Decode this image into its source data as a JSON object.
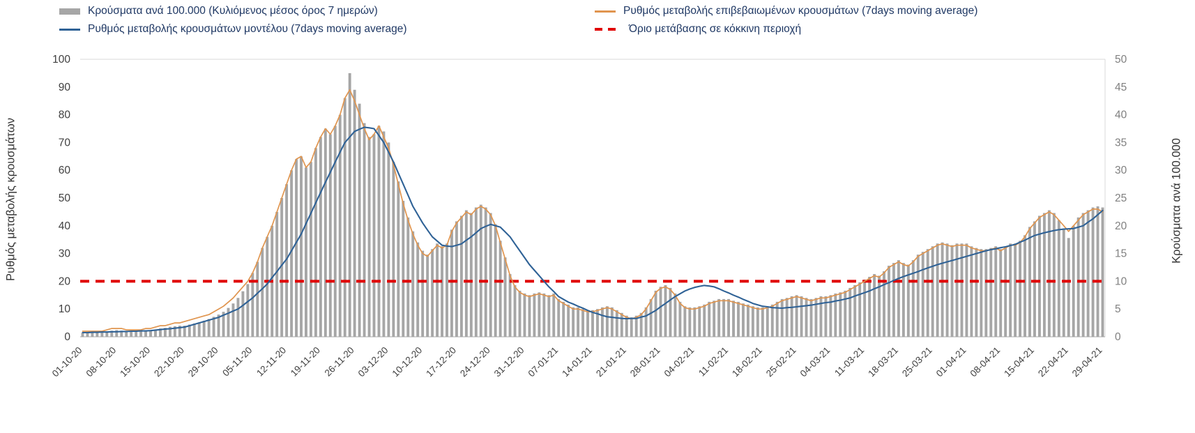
{
  "page": {
    "background": "#ffffff"
  },
  "chart_data": {
    "type": "combo",
    "grid": false,
    "legend_position": "top",
    "left_axis": {
      "title": "Ρυθμός μεταβολής κρουσμάτων",
      "min": 0,
      "max": 100,
      "step": 10,
      "ticks": [
        0,
        10,
        20,
        30,
        40,
        50,
        60,
        70,
        80,
        90,
        100
      ]
    },
    "right_axis": {
      "title": "Κρούσματα ανά 100.000",
      "min": 0,
      "max": 50,
      "step": 5,
      "ticks": [
        0,
        5,
        10,
        15,
        20,
        25,
        30,
        35,
        40,
        45,
        50
      ]
    },
    "x_axis": {
      "points_per_tick": 7,
      "tick_labels": [
        "01-10-20",
        "08-10-20",
        "15-10-20",
        "22-10-20",
        "29-10-20",
        "05-11-20",
        "12-11-20",
        "19-11-20",
        "26-11-20",
        "03-12-20",
        "10-12-20",
        "17-12-20",
        "24-12-20",
        "31-12-20",
        "07-01-21",
        "14-01-21",
        "21-01-21",
        "28-01-21",
        "04-02-21",
        "11-02-21",
        "18-02-21",
        "25-02-21",
        "04-03-21",
        "11-03-21",
        "18-03-21",
        "25-03-21",
        "01-04-21",
        "08-04-21",
        "15-04-21",
        "22-04-21",
        "29-04-21"
      ]
    },
    "threshold": {
      "label": "Όριο μετάβασης σε κόκκινη περιοχή",
      "axis": "left",
      "value": 20,
      "color": "#e00000",
      "style": "dashed"
    },
    "series": [
      {
        "name": "Κρούσματα ανά 100.000 (Κυλιόμενος μέσος όρος 7 ημερών)",
        "type": "bar",
        "axis": "right",
        "color": "#a6a6a6",
        "values": [
          0.7,
          0.7,
          0.8,
          0.8,
          0.9,
          1.0,
          1.1,
          1.2,
          1.1,
          1.0,
          1.0,
          1.0,
          1.1,
          1.2,
          1.2,
          1.3,
          1.5,
          1.6,
          1.8,
          1.9,
          2.0,
          2.0,
          2.2,
          2.4,
          2.6,
          2.9,
          3.2,
          3.6,
          4.0,
          4.5,
          5.2,
          6.0,
          7.0,
          8.2,
          9.5,
          11.5,
          13.5,
          16.0,
          18.0,
          20.0,
          22.5,
          25.0,
          27.5,
          30.0,
          32.0,
          32.5,
          30.5,
          31.5,
          34.0,
          36.0,
          37.5,
          36.5,
          38.0,
          40.0,
          43.0,
          47.5,
          44.5,
          42.0,
          38.5,
          36.0,
          36.5,
          38.0,
          37.0,
          35.0,
          31.5,
          28.0,
          24.5,
          21.5,
          19.0,
          17.0,
          15.5,
          14.8,
          15.8,
          16.8,
          16.3,
          16.8,
          19.3,
          20.8,
          21.8,
          22.8,
          22.3,
          23.3,
          23.8,
          23.3,
          22.3,
          20.3,
          17.3,
          14.3,
          11.3,
          9.3,
          8.3,
          7.8,
          7.5,
          7.8,
          8.0,
          7.8,
          7.5,
          7.8,
          6.8,
          6.3,
          5.8,
          5.3,
          5.3,
          5.0,
          4.8,
          4.8,
          5.0,
          5.3,
          5.5,
          5.3,
          4.8,
          4.3,
          3.8,
          3.5,
          3.8,
          4.3,
          5.3,
          6.8,
          8.3,
          9.0,
          9.3,
          8.8,
          7.8,
          6.3,
          5.5,
          5.3,
          5.3,
          5.5,
          5.8,
          6.3,
          6.5,
          6.8,
          6.8,
          6.8,
          6.5,
          6.3,
          6.0,
          5.8,
          5.5,
          5.3,
          5.3,
          5.5,
          5.8,
          6.3,
          6.8,
          7.0,
          7.3,
          7.5,
          7.3,
          7.0,
          6.8,
          7.0,
          7.3,
          7.3,
          7.5,
          7.8,
          8.0,
          8.3,
          8.8,
          9.3,
          9.8,
          10.3,
          10.8,
          11.3,
          11.0,
          11.8,
          12.8,
          13.3,
          13.8,
          13.3,
          13.0,
          13.8,
          14.8,
          15.3,
          15.8,
          16.3,
          16.8,
          17.0,
          16.8,
          16.5,
          16.8,
          16.8,
          16.8,
          16.3,
          16.0,
          15.8,
          15.8,
          16.0,
          16.3,
          15.8,
          16.3,
          16.8,
          16.8,
          17.3,
          18.3,
          19.8,
          20.8,
          21.8,
          22.3,
          22.8,
          22.3,
          21.0,
          19.5,
          17.8,
          20.0,
          21.5,
          22.3,
          22.8,
          23.3,
          23.5,
          23.3
        ]
      },
      {
        "name": "Ρυθμός μεταβολής επιβεβαιωμένων κρουσμάτων (7days moving average)",
        "type": "line",
        "axis": "left",
        "color": "#e0954f",
        "values": [
          2.0,
          2.0,
          2.0,
          2.0,
          2.0,
          2.5,
          3.0,
          3.0,
          3.0,
          2.5,
          2.5,
          2.5,
          2.5,
          3.0,
          3.0,
          3.5,
          4.0,
          4.0,
          4.5,
          5.0,
          5.0,
          5.5,
          6.0,
          6.5,
          7.0,
          7.5,
          8.0,
          9.0,
          10.0,
          11.0,
          12.5,
          14.0,
          16.0,
          18.0,
          20.0,
          23.0,
          27.0,
          32.0,
          36.0,
          40.0,
          45.0,
          50.0,
          55.0,
          60.0,
          64.0,
          65.0,
          61.0,
          63.0,
          68.0,
          72.0,
          75.0,
          73.0,
          76.0,
          80.0,
          86.0,
          89.0,
          85.0,
          80.0,
          75.0,
          71.0,
          73.0,
          76.0,
          72.0,
          68.0,
          62.0,
          55.0,
          48.0,
          42.0,
          37.0,
          33.0,
          30.0,
          29.0,
          31.0,
          33.0,
          32.0,
          33.0,
          38.0,
          41.0,
          43.0,
          45.0,
          44.0,
          46.0,
          47.0,
          46.0,
          44.0,
          40.0,
          34.0,
          28.0,
          22.0,
          18.0,
          16.0,
          15.0,
          14.5,
          15.0,
          15.5,
          15.0,
          14.5,
          15.0,
          13.0,
          12.0,
          11.0,
          10.0,
          10.0,
          9.5,
          9.0,
          9.0,
          9.5,
          10.0,
          10.5,
          10.0,
          9.0,
          8.0,
          7.0,
          6.5,
          7.0,
          8.0,
          10.0,
          13.0,
          16.0,
          17.5,
          18.0,
          17.0,
          15.0,
          12.0,
          10.5,
          10.0,
          10.0,
          10.5,
          11.0,
          12.0,
          12.5,
          13.0,
          13.0,
          13.0,
          12.5,
          12.0,
          11.5,
          11.0,
          10.5,
          10.0,
          10.0,
          10.5,
          11.0,
          12.0,
          13.0,
          13.5,
          14.0,
          14.5,
          14.0,
          13.5,
          13.0,
          13.5,
          14.0,
          14.0,
          14.5,
          15.0,
          15.5,
          16.0,
          17.0,
          18.0,
          19.0,
          20.0,
          21.0,
          22.0,
          21.5,
          23.0,
          25.0,
          26.0,
          27.0,
          26.0,
          25.5,
          27.0,
          29.0,
          30.0,
          31.0,
          32.0,
          33.0,
          33.5,
          33.0,
          32.5,
          33.0,
          33.0,
          33.0,
          32.0,
          31.5,
          31.0,
          31.0,
          31.5,
          32.0,
          31.0,
          32.0,
          33.0,
          33.0,
          34.0,
          36.0,
          39.0,
          41.0,
          43.0,
          44.0,
          45.0,
          44.0,
          42.0,
          40.0,
          38.0,
          40.0,
          42.0,
          44.0,
          45.0,
          46.0,
          46.0,
          45.0
        ]
      },
      {
        "name": "Ρυθμός μεταβολής κρουσμάτων μοντέλου (7days moving average)",
        "type": "line",
        "axis": "left",
        "color": "#2f6296",
        "values": [
          1.5,
          1.5,
          1.6,
          1.6,
          1.7,
          1.7,
          1.8,
          1.8,
          1.9,
          1.9,
          2.0,
          2.0,
          2.1,
          2.1,
          2.2,
          2.4,
          2.6,
          2.8,
          2.9,
          3.1,
          3.3,
          3.5,
          4.0,
          4.5,
          5.0,
          5.5,
          6.0,
          6.5,
          7.0,
          7.8,
          8.5,
          9.3,
          10.0,
          11.3,
          12.7,
          14.0,
          15.7,
          17.3,
          19.0,
          21.3,
          23.5,
          25.8,
          28.0,
          31.0,
          34.0,
          37.0,
          40.8,
          44.5,
          48.3,
          52.0,
          55.7,
          59.3,
          63.0,
          66.5,
          70.0,
          72.0,
          74.0,
          74.8,
          75.5,
          75.3,
          75.0,
          72.5,
          70.0,
          66.5,
          63.0,
          59.0,
          55.0,
          51.0,
          47.0,
          44.0,
          41.0,
          38.5,
          36.0,
          34.5,
          33.0,
          32.7,
          32.5,
          33.0,
          33.5,
          34.8,
          36.0,
          37.5,
          39.0,
          39.8,
          40.5,
          40.0,
          39.5,
          37.8,
          36.0,
          33.5,
          31.0,
          28.5,
          26.0,
          24.0,
          22.0,
          20.0,
          18.0,
          16.3,
          14.5,
          13.5,
          12.5,
          11.8,
          11.0,
          10.3,
          9.5,
          8.8,
          8.3,
          7.7,
          7.2,
          7.0,
          6.8,
          6.6,
          6.5,
          6.6,
          6.6,
          7.1,
          7.5,
          8.5,
          9.5,
          10.8,
          12.0,
          13.3,
          14.5,
          15.5,
          16.5,
          17.2,
          17.8,
          18.2,
          18.5,
          18.3,
          18.0,
          17.3,
          16.5,
          15.8,
          15.0,
          14.3,
          13.5,
          12.8,
          12.0,
          11.5,
          11.0,
          10.8,
          10.5,
          10.4,
          10.3,
          10.5,
          10.6,
          10.8,
          11.0,
          11.2,
          11.4,
          11.7,
          12.0,
          12.3,
          12.5,
          12.9,
          13.2,
          13.6,
          14.0,
          14.7,
          15.3,
          15.9,
          16.5,
          17.3,
          18.0,
          18.8,
          19.5,
          20.3,
          21.0,
          21.7,
          22.3,
          22.9,
          23.5,
          24.2,
          24.8,
          25.4,
          26.0,
          26.5,
          27.0,
          27.5,
          28.0,
          28.5,
          29.0,
          29.5,
          30.0,
          30.5,
          31.0,
          31.4,
          31.7,
          32.1,
          32.4,
          32.9,
          33.3,
          34.1,
          34.8,
          35.7,
          36.5,
          37.0,
          37.5,
          37.9,
          38.3,
          38.6,
          38.8,
          38.9,
          39.0,
          39.5,
          40.0,
          41.3,
          42.5,
          44.0,
          45.5
        ]
      }
    ]
  }
}
